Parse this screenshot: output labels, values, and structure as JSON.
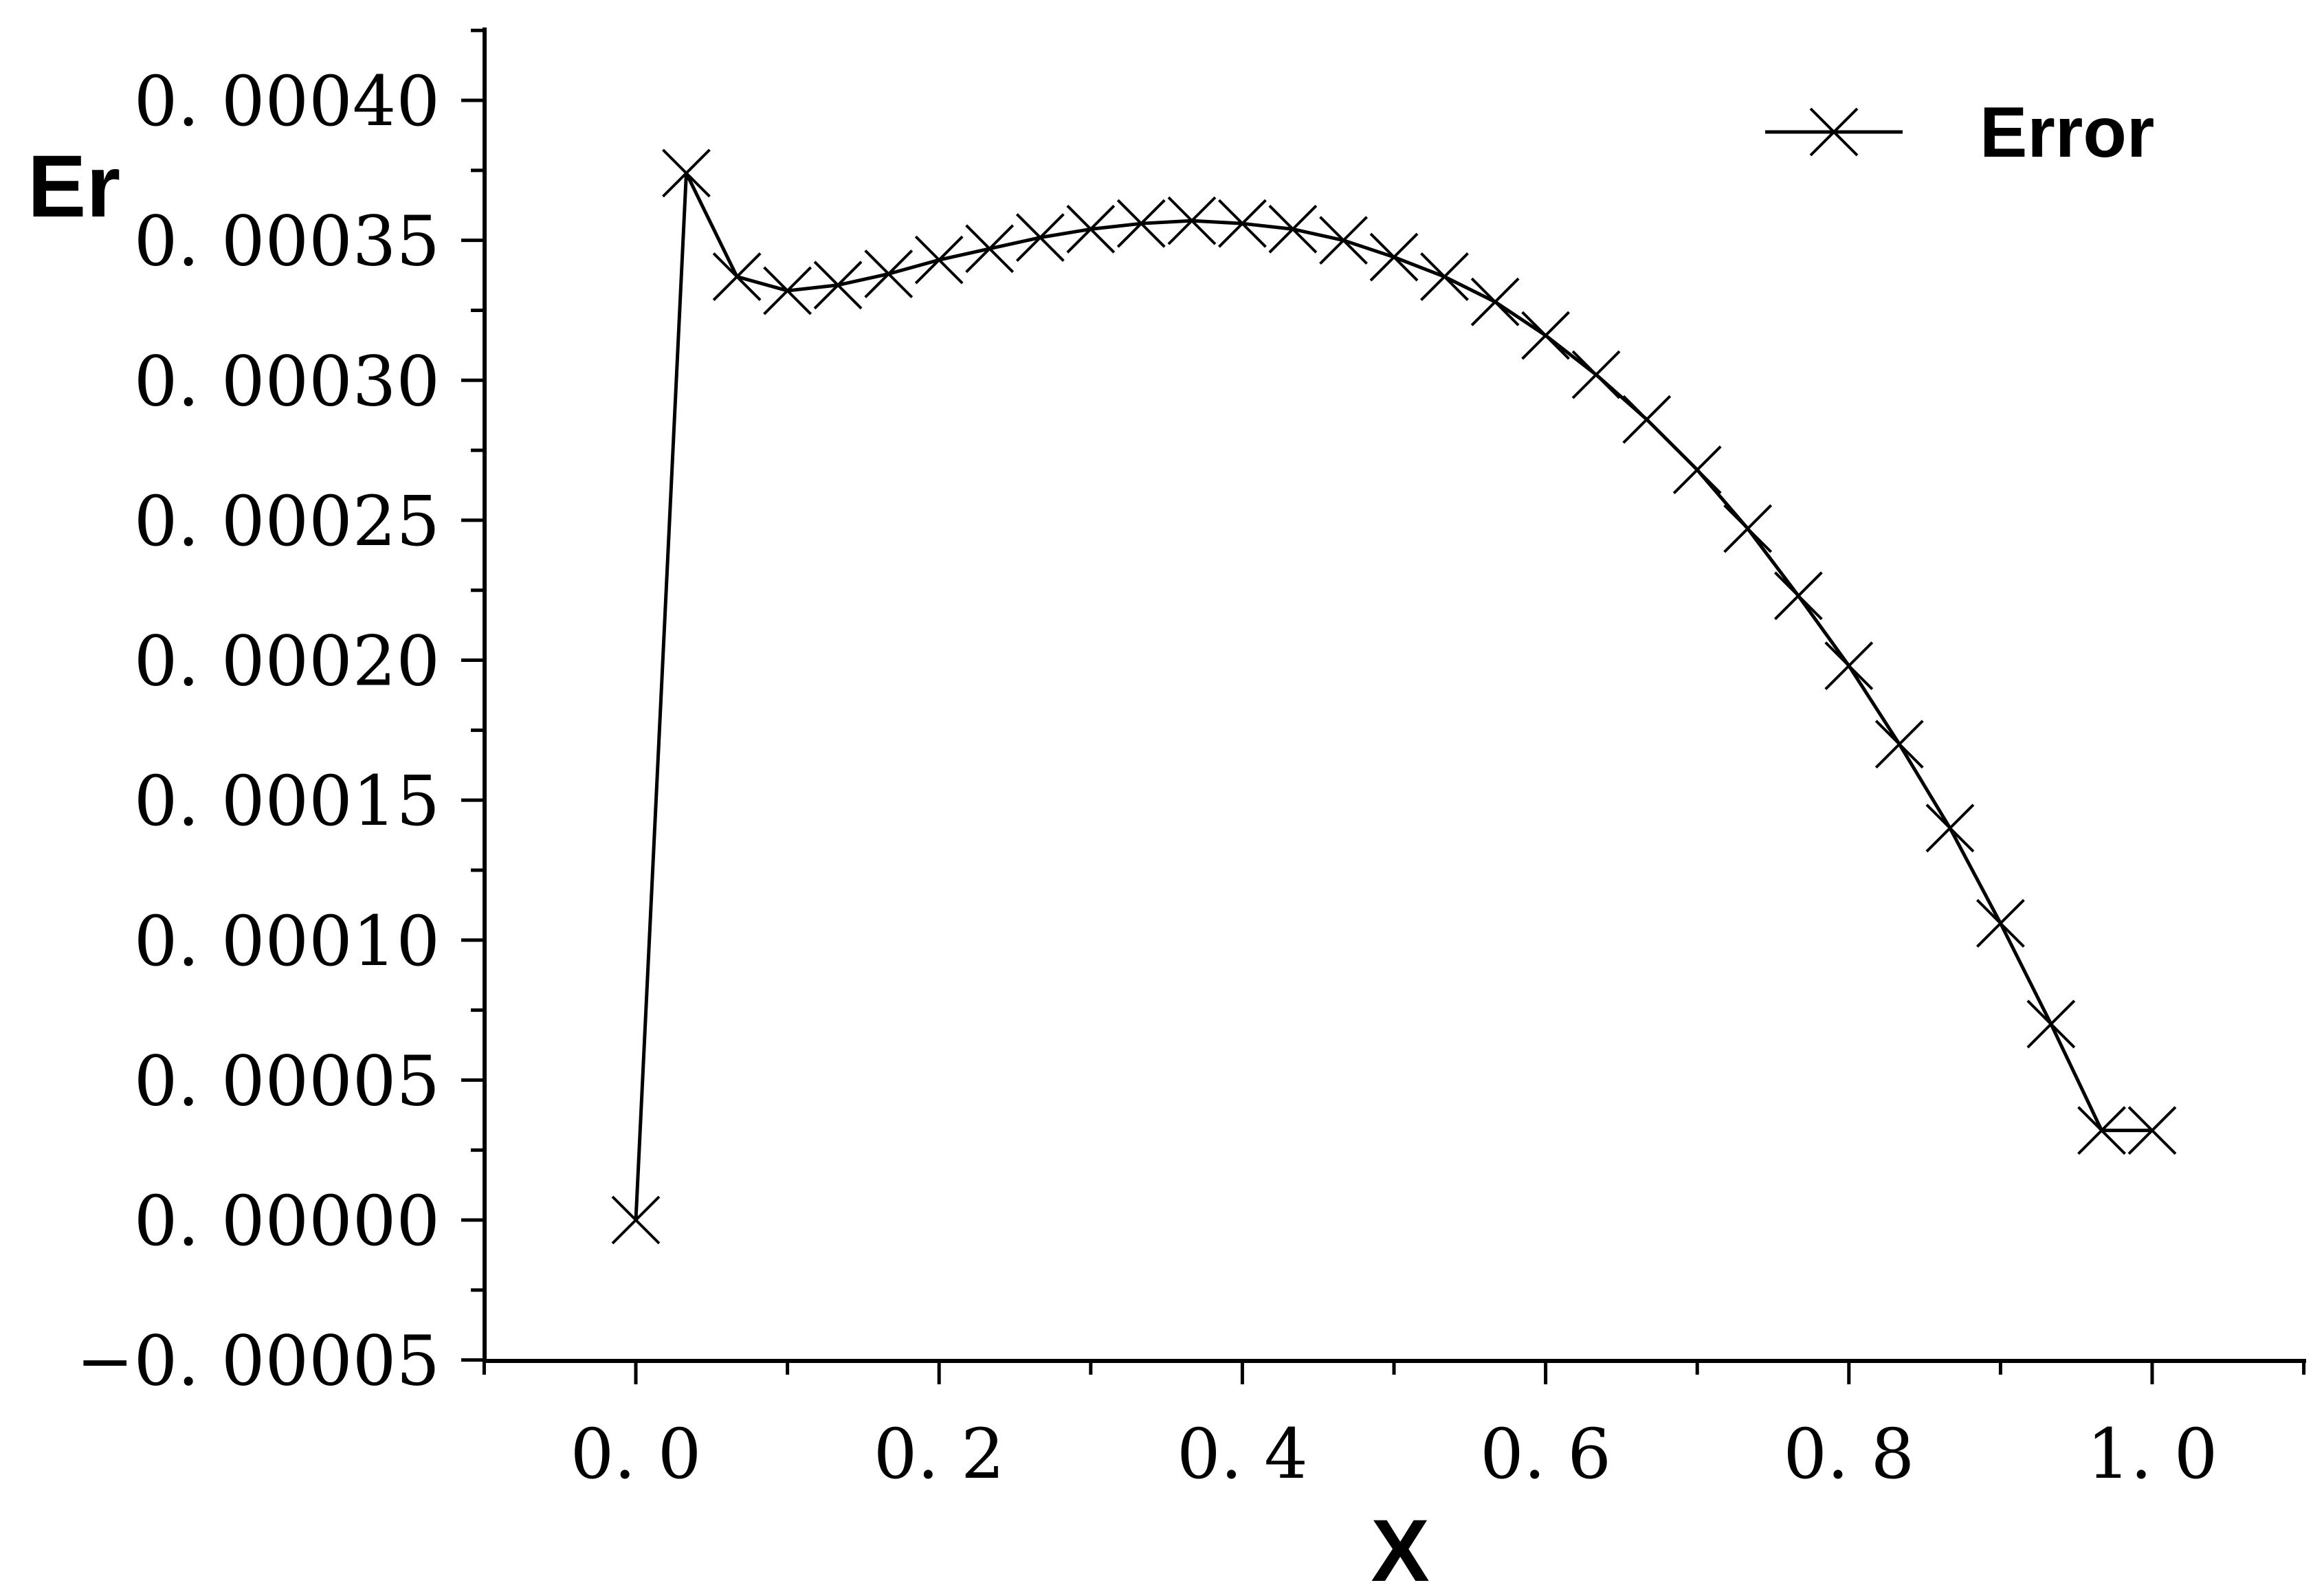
{
  "chart_data": {
    "type": "line",
    "xlabel": "X",
    "ylabel": "Er",
    "xlim": [
      -0.1,
      1.1
    ],
    "ylim": [
      -5e-05,
      0.00043
    ],
    "x_ticks": [
      0.0,
      0.2,
      0.4,
      0.6,
      0.8,
      1.0
    ],
    "x_tick_labels": [
      "0. 0",
      "0. 2",
      "0. 4",
      "0. 6",
      "0. 8",
      "1. 0"
    ],
    "y_ticks": [
      -5e-05,
      0.0,
      5e-05,
      0.0001,
      0.00015,
      0.0002,
      0.00025,
      0.0003,
      0.00035,
      0.0004
    ],
    "y_tick_labels": [
      "−0. 00005",
      "0. 00000",
      "0. 00005",
      "0. 00010",
      "0. 00015",
      "0. 00020",
      "0. 00025",
      "0. 00030",
      "0. 00035",
      "0. 00040"
    ],
    "grid": false,
    "legend_position": "top-right",
    "series": [
      {
        "name": "Error",
        "marker": "x",
        "color": "#000000",
        "x": [
          0.0,
          0.0333,
          0.0667,
          0.1,
          0.1333,
          0.1667,
          0.2,
          0.2333,
          0.2667,
          0.3,
          0.3333,
          0.3667,
          0.4,
          0.4333,
          0.4667,
          0.5,
          0.5333,
          0.5667,
          0.6,
          0.6333,
          0.6667,
          0.7,
          0.7333,
          0.7667,
          0.8,
          0.8333,
          0.8667,
          0.9,
          0.9333,
          0.9667,
          1.0
        ],
        "y": [
          0.0,
          0.000374,
          0.000337,
          0.000332,
          0.000334,
          0.000338,
          0.000343,
          0.000347,
          0.000351,
          0.000354,
          0.000356,
          0.000357,
          0.000356,
          0.000354,
          0.00035,
          0.000344,
          0.000337,
          0.000328,
          0.000316,
          0.000302,
          0.000286,
          0.000268,
          0.000247,
          0.000223,
          0.000198,
          0.00017,
          0.00014,
          0.000106,
          7e-05,
          3.2e-05,
          3.2e-05
        ]
      }
    ]
  }
}
